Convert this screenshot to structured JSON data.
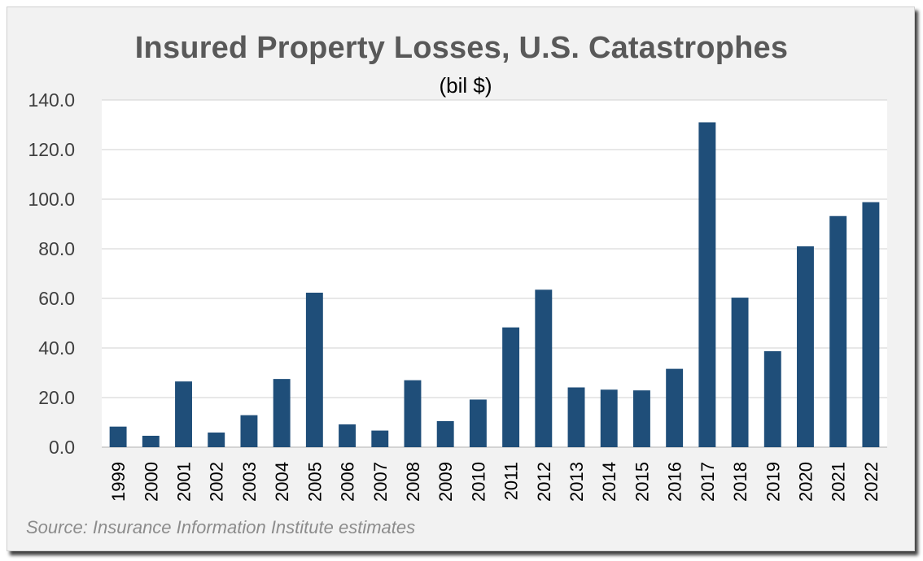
{
  "chart_data": {
    "type": "bar",
    "title": "Insured Property Losses, U.S. Catastrophes",
    "subtitle": "(bil $)",
    "source": "Source: Insurance Information Institute estimates",
    "categories": [
      "1999",
      "2000",
      "2001",
      "2002",
      "2003",
      "2004",
      "2005",
      "2006",
      "2007",
      "2008",
      "2009",
      "2010",
      "2011",
      "2012",
      "2013",
      "2014",
      "2015",
      "2016",
      "2017",
      "2018",
      "2019",
      "2020",
      "2021",
      "2022"
    ],
    "values": [
      8.3,
      4.6,
      26.5,
      5.9,
      12.9,
      27.5,
      62.3,
      9.2,
      6.7,
      27.0,
      10.5,
      19.2,
      48.3,
      63.5,
      24.1,
      23.2,
      22.9,
      31.6,
      131.0,
      60.3,
      38.7,
      81.0,
      93.2,
      98.8
    ],
    "ylim": [
      0,
      140
    ],
    "yticks": [
      "0.0",
      "20.0",
      "40.0",
      "60.0",
      "80.0",
      "100.0",
      "120.0",
      "140.0"
    ],
    "grid": true,
    "bar_color": "#1f4e79"
  }
}
